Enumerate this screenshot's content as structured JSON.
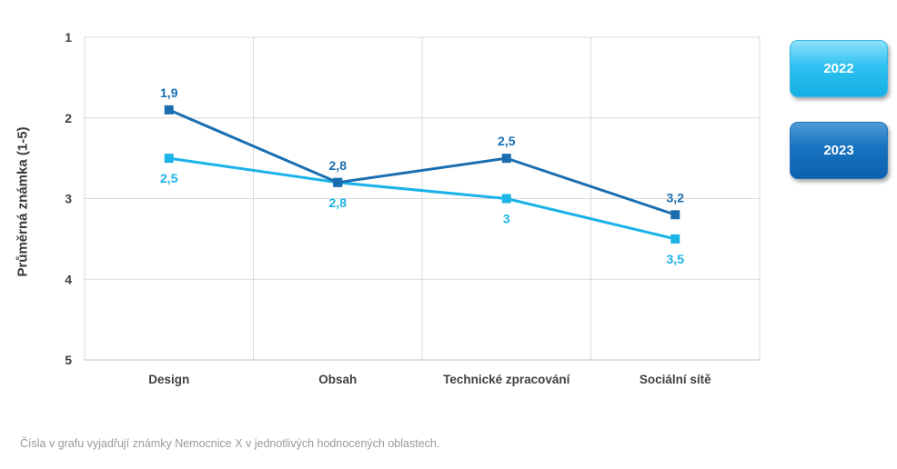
{
  "chart_data": {
    "type": "line",
    "categories": [
      "Design",
      "Obsah",
      "Technické zpracování",
      "Sociální sítě"
    ],
    "series": [
      {
        "name": "2022",
        "values": [
          2.5,
          2.8,
          3,
          3.5
        ],
        "labels": [
          "2,5",
          "2,8",
          "3",
          "3,5"
        ],
        "color": "#1BB3E8"
      },
      {
        "name": "2023",
        "values": [
          1.9,
          2.8,
          2.5,
          3.2
        ],
        "labels": [
          "1,9",
          "2,8",
          "2,5",
          "3,2"
        ],
        "color": "#1A6EB0"
      }
    ],
    "ylabel": "Průměrná známka (1-5)",
    "xlabel": "",
    "ylim": [
      1,
      5
    ],
    "y_inverted": true,
    "y_ticks": [
      "1",
      "2",
      "3",
      "4",
      "5"
    ],
    "grid": true,
    "legend_position": "right"
  },
  "footnote": "Čísla v grafu vyjadřují známky Nemocnice X v jednotlivých hodnocených oblastech."
}
